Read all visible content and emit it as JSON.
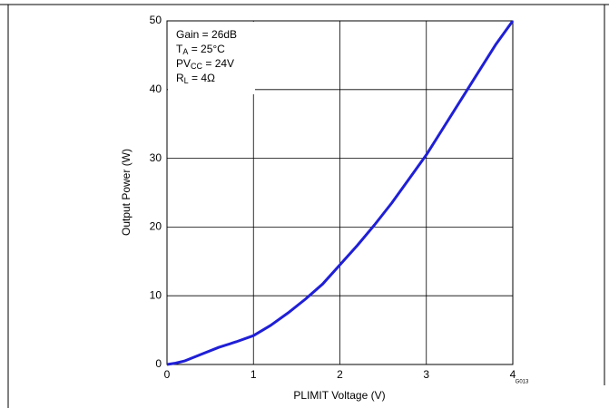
{
  "chart_data": {
    "type": "line",
    "xlabel": "PLIMIT Voltage (V)",
    "ylabel": "Output Power (W)",
    "figure_code": "G013",
    "annotation": [
      [
        "Gain = 26dB"
      ],
      [
        "T",
        "A",
        " = 25°C"
      ],
      [
        "PV",
        "CC",
        " = 24V"
      ],
      [
        "R",
        "L",
        " = 4Ω"
      ]
    ],
    "x": [
      0,
      0.1,
      0.2,
      0.4,
      0.6,
      0.8,
      1.0,
      1.2,
      1.4,
      1.6,
      1.8,
      2.0,
      2.2,
      2.4,
      2.6,
      2.8,
      3.0,
      3.2,
      3.4,
      3.6,
      3.8,
      4.0
    ],
    "series": [
      {
        "name": "Output Power",
        "color": "#1f1fd6",
        "values": [
          0,
          0.2,
          0.5,
          1.5,
          2.5,
          3.3,
          4.2,
          5.7,
          7.5,
          9.5,
          11.7,
          14.5,
          17.3,
          20.3,
          23.5,
          27,
          30.5,
          34.5,
          38.5,
          42.5,
          46.5,
          50
        ]
      }
    ],
    "xlim": [
      0,
      4
    ],
    "xticks": [
      0,
      1,
      2,
      3,
      4
    ],
    "ylim": [
      0,
      50
    ],
    "yticks": [
      0,
      10,
      20,
      30,
      40,
      50
    ],
    "grid": true
  }
}
